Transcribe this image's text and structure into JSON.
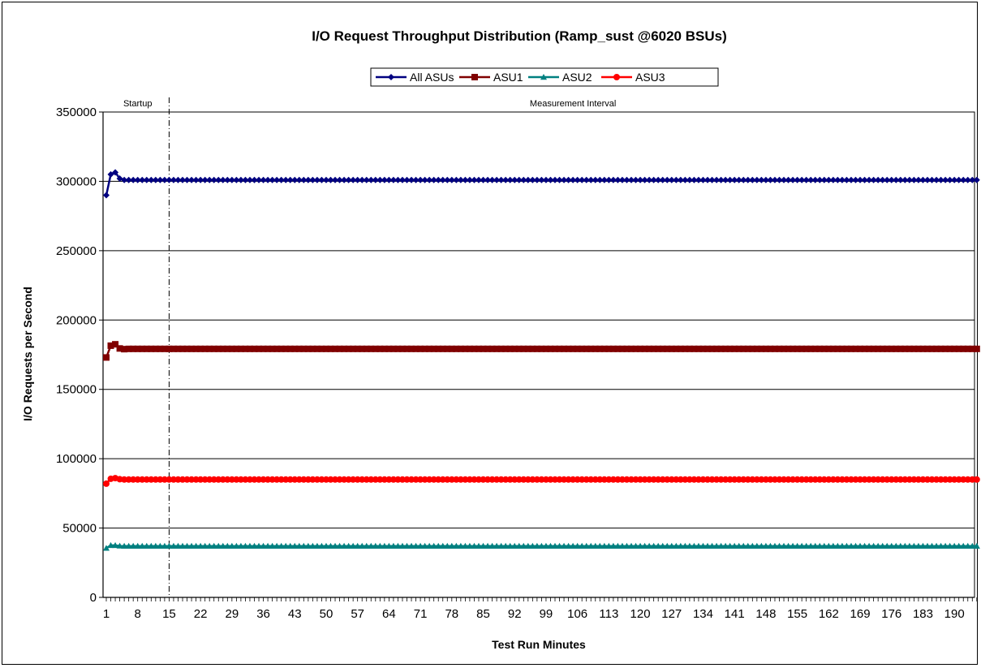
{
  "chart_data": {
    "type": "line",
    "title": "I/O Request Throughput Distribution (Ramp_sust @6020 BSUs)",
    "xlabel": "Test Run Minutes",
    "ylabel": "I/O Requests per Second",
    "ylim": [
      0,
      350000
    ],
    "y_ticks": [
      0,
      50000,
      100000,
      150000,
      200000,
      250000,
      300000,
      350000
    ],
    "y_tick_labels": [
      "0",
      "50000",
      "100000",
      "150000",
      "200000",
      "250000",
      "300000",
      "350000"
    ],
    "x_range": [
      1,
      195
    ],
    "x_ticks": [
      1,
      8,
      15,
      22,
      29,
      36,
      43,
      50,
      57,
      64,
      71,
      78,
      85,
      92,
      99,
      106,
      113,
      120,
      127,
      134,
      141,
      148,
      155,
      162,
      169,
      176,
      183,
      190
    ],
    "x_tick_labels": [
      "1",
      "8",
      "15",
      "22",
      "29",
      "36",
      "43",
      "50",
      "57",
      "64",
      "71",
      "78",
      "85",
      "92",
      "99",
      "106",
      "113",
      "120",
      "127",
      "134",
      "141",
      "148",
      "155",
      "162",
      "169",
      "176",
      "183",
      "190"
    ],
    "grid": "horizontal",
    "legend_position": "top-center",
    "regions": [
      {
        "label": "Startup",
        "from": 1,
        "to": 15
      },
      {
        "label": "Measurement Interval",
        "from": 15,
        "to": 195
      }
    ],
    "boundary_x": 15,
    "series": [
      {
        "name": "All ASUs",
        "color": "#000080",
        "marker": "diamond",
        "start_values": [
          290000,
          305000,
          306500,
          302000,
          301000
        ],
        "steady_value": 301000
      },
      {
        "name": "ASU1",
        "color": "#800000",
        "marker": "square",
        "start_values": [
          173000,
          181500,
          182500,
          179500,
          179000
        ],
        "steady_value": 179200
      },
      {
        "name": "ASU2",
        "color": "#008080",
        "marker": "triangle",
        "start_values": [
          35500,
          37500,
          37500,
          37100,
          37000
        ],
        "steady_value": 37000
      },
      {
        "name": "ASU3",
        "color": "#ff0000",
        "marker": "circle",
        "start_values": [
          82000,
          85500,
          86000,
          85200,
          85000
        ],
        "steady_value": 85000
      }
    ]
  }
}
